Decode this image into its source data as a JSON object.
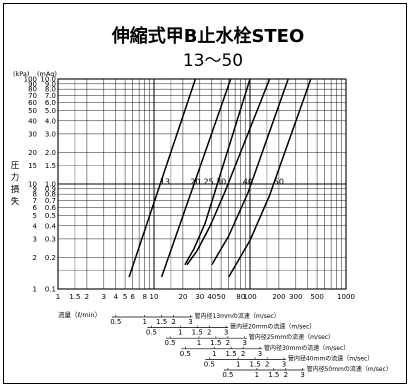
{
  "chart_data": {
    "type": "line",
    "title": "伸縮式甲B止水栓STEO",
    "subtitle": "13〜50",
    "unit_kpa": "(kPa)",
    "unit_maq": "(mAq)",
    "ylabel": [
      "圧",
      "力",
      "損",
      "失"
    ],
    "xlabel": "流量（ℓ/min）",
    "xscale": "log",
    "yscale": "log",
    "xlim": [
      1,
      1000
    ],
    "ylim": [
      1,
      100
    ],
    "grid": true,
    "x_ticks": [
      {
        "label": "1",
        "value": 1
      },
      {
        "label": "1.5",
        "value": 1.5
      },
      {
        "label": "2",
        "value": 2
      },
      {
        "label": "3",
        "value": 3
      },
      {
        "label": "4",
        "value": 4
      },
      {
        "label": "5",
        "value": 5
      },
      {
        "label": "6",
        "value": 6
      },
      {
        "label": "8",
        "value": 8
      },
      {
        "label": "10",
        "value": 10
      },
      {
        "label": "20",
        "value": 20
      },
      {
        "label": "30",
        "value": 30
      },
      {
        "label": "40",
        "value": 40
      },
      {
        "label": "50",
        "value": 50
      },
      {
        "label": "80",
        "value": 80
      },
      {
        "label": "100",
        "value": 100
      },
      {
        "label": "200",
        "value": 200
      },
      {
        "label": "300",
        "value": 300
      },
      {
        "label": "500",
        "value": 500
      },
      {
        "label": "1000",
        "value": 1000
      }
    ],
    "y_ticks_kpa": [
      {
        "label": "1",
        "value": 1
      },
      {
        "label": "2",
        "value": 2
      },
      {
        "label": "3",
        "value": 3
      },
      {
        "label": "4",
        "value": 4
      },
      {
        "label": "5",
        "value": 5
      },
      {
        "label": "6",
        "value": 6
      },
      {
        "label": "7",
        "value": 7
      },
      {
        "label": "8",
        "value": 8
      },
      {
        "label": "9",
        "value": 9
      },
      {
        "label": "10",
        "value": 10
      },
      {
        "label": "15",
        "value": 15
      },
      {
        "label": "20",
        "value": 20
      },
      {
        "label": "30",
        "value": 30
      },
      {
        "label": "40",
        "value": 40
      },
      {
        "label": "50",
        "value": 50
      },
      {
        "label": "60",
        "value": 60
      },
      {
        "label": "70",
        "value": 70
      },
      {
        "label": "80",
        "value": 80
      },
      {
        "label": "90",
        "value": 90
      },
      {
        "label": "100",
        "value": 100
      }
    ],
    "y_ticks_maq": [
      {
        "label": "0.1",
        "value": 1
      },
      {
        "label": "0.2",
        "value": 2
      },
      {
        "label": "0.3",
        "value": 3
      },
      {
        "label": "0.4",
        "value": 4
      },
      {
        "label": "0.5",
        "value": 5
      },
      {
        "label": "0.6",
        "value": 6
      },
      {
        "label": "0.7",
        "value": 7
      },
      {
        "label": "0.8",
        "value": 8
      },
      {
        "label": "0.9",
        "value": 9
      },
      {
        "label": "1.0",
        "value": 10
      },
      {
        "label": "1.5",
        "value": 15
      },
      {
        "label": "2.0",
        "value": 20
      },
      {
        "label": "3.0",
        "value": 30
      },
      {
        "label": "4.0",
        "value": 40
      },
      {
        "label": "5.0",
        "value": 50
      },
      {
        "label": "6.0",
        "value": 60
      },
      {
        "label": "7.0",
        "value": 70
      },
      {
        "label": "8.0",
        "value": 80
      },
      {
        "label": "9.0",
        "value": 90
      },
      {
        "label": "10.0",
        "value": 100
      }
    ],
    "series": [
      {
        "name": "13",
        "label_at": [
          13,
          9.5
        ],
        "points": [
          [
            5.5,
            1.3
          ],
          [
            27,
            100
          ]
        ]
      },
      {
        "name": "20",
        "label_at": [
          27,
          9.5
        ],
        "points": [
          [
            12,
            1.3
          ],
          [
            63,
            100
          ]
        ]
      },
      {
        "name": "25",
        "label_at": [
          37,
          9.5
        ],
        "points": [
          [
            21,
            1.7
          ],
          [
            26,
            2.4
          ],
          [
            34,
            4.2
          ],
          [
            100,
            100
          ]
        ]
      },
      {
        "name": "30",
        "label_at": [
          50,
          9.5
        ],
        "points": [
          [
            22,
            1.7
          ],
          [
            28,
            2.3
          ],
          [
            38,
            3.9
          ],
          [
            55,
            8.5
          ],
          [
            160,
            100
          ]
        ]
      },
      {
        "name": "40",
        "label_at": [
          95,
          9.5
        ],
        "points": [
          [
            40,
            1.7
          ],
          [
            60,
            3.2
          ],
          [
            95,
            8.2
          ],
          [
            250,
            100
          ]
        ]
      },
      {
        "name": "50",
        "label_at": [
          200,
          9.5
        ],
        "points": [
          [
            60,
            1.3
          ],
          [
            100,
            2.9
          ],
          [
            160,
            7.8
          ],
          [
            430,
            100
          ]
        ]
      }
    ],
    "velocity_scales": [
      {
        "label": "管内径13mmの流速（m/sec）",
        "ticks": [
          "0.5",
          "1",
          "1.5",
          "2",
          "3"
        ],
        "flows": [
          4.0,
          8.0,
          12.0,
          16.0,
          24.0
        ]
      },
      {
        "label": "管内径20mmの流速（m/sec）",
        "ticks": [
          "0.5",
          "1",
          "1.5",
          "2",
          "3"
        ],
        "flows": [
          9.4,
          18.8,
          28.2,
          37.6,
          56.4
        ]
      },
      {
        "label": "管内径25mmの流速（m/sec）",
        "ticks": [
          "0.5",
          "1",
          "1.5",
          "2",
          "3"
        ],
        "flows": [
          14.7,
          29.4,
          44.1,
          58.8,
          88.2
        ]
      },
      {
        "label": "管内径30mmの流速（m/sec）",
        "ticks": [
          "0.5",
          "1",
          "1.5",
          "2",
          "3"
        ],
        "flows": [
          21.2,
          42.4,
          63.6,
          84.8,
          127
        ]
      },
      {
        "label": "管内径40mmの流速（m/sec）",
        "ticks": [
          "0.5",
          "1",
          "1.5",
          "2",
          "3"
        ],
        "flows": [
          37.7,
          75.4,
          113,
          151,
          226
        ]
      },
      {
        "label": "管内径50mmの流速（m/sec）",
        "ticks": [
          "0.5",
          "1",
          "1.5",
          "2",
          "3"
        ],
        "flows": [
          58.9,
          118,
          177,
          236,
          353
        ]
      }
    ]
  }
}
